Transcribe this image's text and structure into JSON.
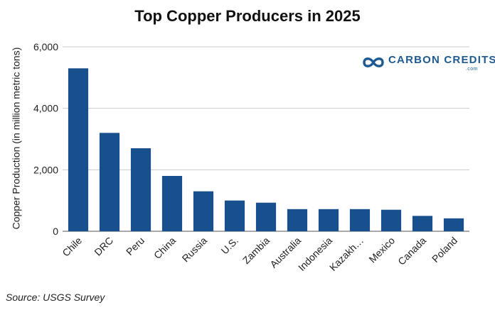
{
  "chart_data": {
    "type": "bar",
    "title": "Top Copper Producers in 2025",
    "ylabel": "Copper Production (in million metric tons)",
    "xlabel": "",
    "categories": [
      "Chile",
      "DRC",
      "Peru",
      "China",
      "Russia",
      "U.S.",
      "Zambia",
      "Australia",
      "Indonesia",
      "Kazakh…",
      "Mexico",
      "Canada",
      "Poland"
    ],
    "values": [
      5300,
      3200,
      2700,
      1800,
      1300,
      1000,
      930,
      720,
      720,
      720,
      700,
      500,
      420
    ],
    "ylim": [
      0,
      6000
    ],
    "yticks": [
      0,
      2000,
      4000,
      6000
    ],
    "ytick_labels": [
      "0",
      "2,000",
      "4,000",
      "6,000"
    ],
    "grid": true,
    "bar_color": "#17508d"
  },
  "source": "Source: USGS Survey",
  "logo": {
    "name": "CARBON CREDITS",
    "sub": ".com",
    "icon": "infinity-icon",
    "color": "#1d5a91"
  }
}
